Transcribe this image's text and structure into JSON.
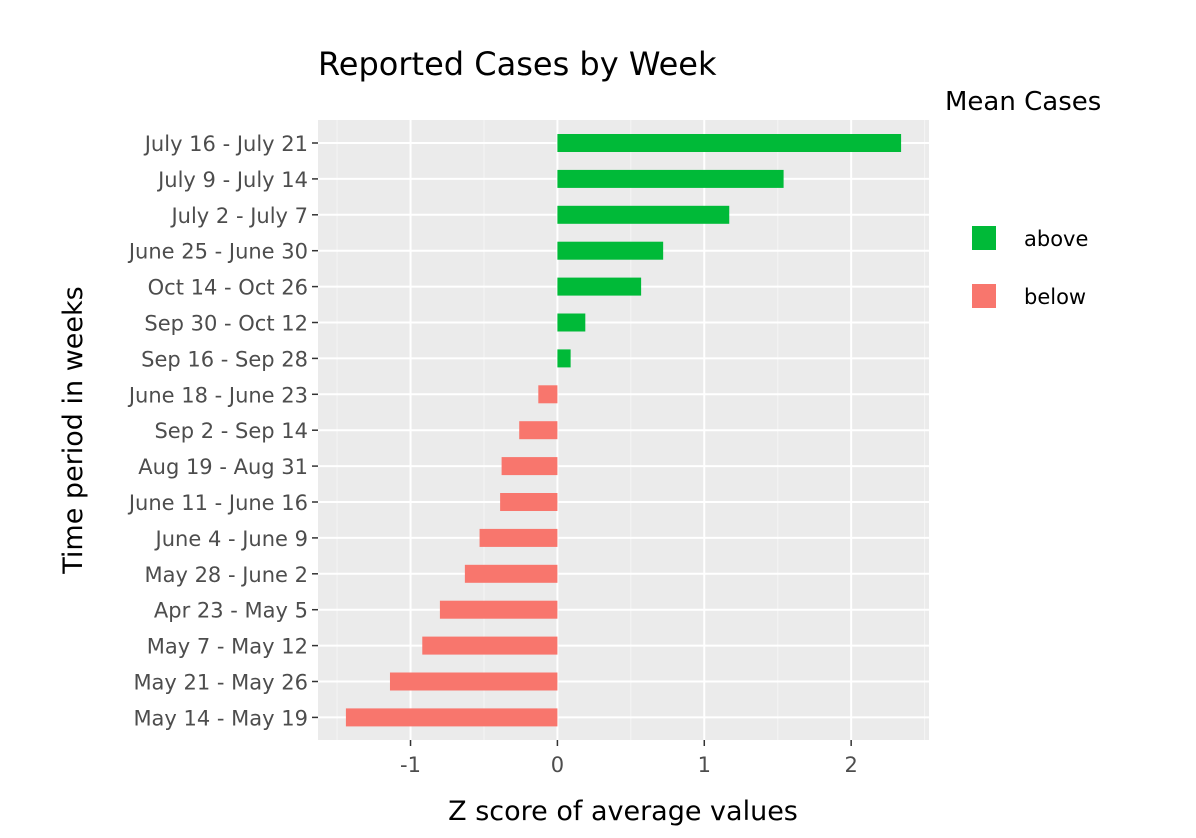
{
  "chart_data": {
    "type": "bar",
    "orientation": "horizontal",
    "title": "Reported Cases by Week",
    "xlabel": "Z score of average values",
    "ylabel": "Time period in weeks",
    "xlim": [
      -1.63,
      2.53
    ],
    "xticks": [
      -1,
      0,
      1,
      2
    ],
    "xtick_labels": [
      "-1",
      "0",
      "1",
      "2"
    ],
    "grid": true,
    "legend": {
      "title": "Mean Cases",
      "placement": "right",
      "entries": [
        {
          "label": "above",
          "color": "#00BA38"
        },
        {
          "label": "below",
          "color": "#F8766D"
        }
      ]
    },
    "categories": [
      "July 16 - July 21",
      "July 9 - July 14",
      "July 2 - July 7",
      "June 25 - June 30",
      "Oct 14 - Oct 26",
      "Sep 30 - Oct 12",
      "Sep 16 - Sep 28",
      "June 18 - June 23",
      "Sep 2 - Sep 14",
      "Aug 19 - Aug 31",
      "June 11 - June 16",
      "June 4 - June 9",
      "May 28 - June 2",
      "Apr 23 - May 5",
      "May 7 - May 12",
      "May 21 - May 26",
      "May 14 - May 19"
    ],
    "values": [
      2.34,
      1.54,
      1.17,
      0.72,
      0.57,
      0.19,
      0.09,
      -0.13,
      -0.26,
      -0.38,
      -0.39,
      -0.53,
      -0.63,
      -0.8,
      -0.92,
      -1.14,
      -1.44
    ],
    "groups": [
      "above",
      "above",
      "above",
      "above",
      "above",
      "above",
      "above",
      "below",
      "below",
      "below",
      "below",
      "below",
      "below",
      "below",
      "below",
      "below",
      "below"
    ]
  }
}
